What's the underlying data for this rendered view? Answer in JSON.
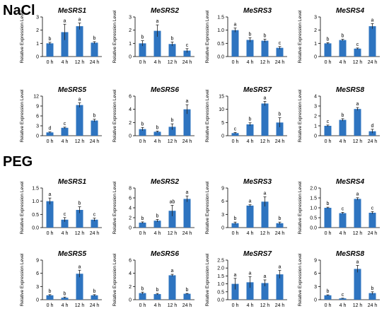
{
  "sections": [
    {
      "title": "NaCl"
    },
    {
      "title": "PEG"
    }
  ],
  "colors": {
    "bar": "#2e74c0",
    "axis": "#000000",
    "error": "#222222"
  },
  "chart_data": [
    {
      "section": "NaCl",
      "type": "bar",
      "title": "MeSRS1",
      "ylabel": "Relative Expression Level",
      "categories": [
        "0 h",
        "4 h",
        "12 h",
        "24 h"
      ],
      "values": [
        1.0,
        1.85,
        2.3,
        1.05
      ],
      "errors": [
        0.08,
        0.6,
        0.25,
        0.08
      ],
      "letters": [
        "b",
        "a",
        "a",
        "b"
      ],
      "ylim": [
        0,
        3
      ],
      "yticks": [
        0,
        1,
        2,
        3
      ]
    },
    {
      "section": "NaCl",
      "type": "bar",
      "title": "MeSRS2",
      "ylabel": "Relative Expression Level",
      "categories": [
        "0 h",
        "4 h",
        "12 h",
        "24 h"
      ],
      "values": [
        1.0,
        1.95,
        0.95,
        0.45
      ],
      "errors": [
        0.2,
        0.45,
        0.15,
        0.15
      ],
      "letters": [
        "b",
        "a",
        "b",
        "c"
      ],
      "ylim": [
        0,
        3
      ],
      "yticks": [
        0,
        1,
        2,
        3
      ]
    },
    {
      "section": "NaCl",
      "type": "bar",
      "title": "MeSRS3",
      "ylabel": "Relative Expression Level",
      "categories": [
        "0 h",
        "4 h",
        "12 h",
        "24 h"
      ],
      "values": [
        1.0,
        0.63,
        0.6,
        0.33
      ],
      "errors": [
        0.08,
        0.08,
        0.06,
        0.05
      ],
      "letters": [
        "a",
        "b",
        "b",
        "c"
      ],
      "ylim": [
        0,
        1.5
      ],
      "yticks": [
        0,
        0.5,
        1.0,
        1.5
      ]
    },
    {
      "section": "NaCl",
      "type": "bar",
      "title": "MeSRS4",
      "ylabel": "Relative Expression Level",
      "categories": [
        "0 h",
        "4 h",
        "12 h",
        "24 h"
      ],
      "values": [
        1.0,
        1.25,
        0.6,
        2.3
      ],
      "errors": [
        0.05,
        0.06,
        0.05,
        0.2
      ],
      "letters": [
        "b",
        "b",
        "c",
        "a"
      ],
      "ylim": [
        0,
        3
      ],
      "yticks": [
        0,
        1,
        2,
        3
      ]
    },
    {
      "section": "NaCl",
      "type": "bar",
      "title": "MeSRS5",
      "ylabel": "Relative Expression Level",
      "categories": [
        "0 h",
        "4 h",
        "12 h",
        "24 h"
      ],
      "values": [
        1.0,
        2.4,
        9.3,
        4.6
      ],
      "errors": [
        0.15,
        0.2,
        0.7,
        0.4
      ],
      "letters": [
        "d",
        "c",
        "a",
        "b"
      ],
      "ylim": [
        0,
        12
      ],
      "yticks": [
        0,
        3,
        6,
        9,
        12
      ]
    },
    {
      "section": "NaCl",
      "type": "bar",
      "title": "MeSRS6",
      "ylabel": "Relative Expression Level",
      "categories": [
        "0 h",
        "4 h",
        "12 h",
        "24 h"
      ],
      "values": [
        1.0,
        0.6,
        1.35,
        4.0
      ],
      "errors": [
        0.25,
        0.1,
        0.45,
        0.7
      ],
      "letters": [
        "b",
        "b",
        "b",
        "a"
      ],
      "ylim": [
        0,
        6
      ],
      "yticks": [
        0,
        2,
        4,
        6
      ]
    },
    {
      "section": "NaCl",
      "type": "bar",
      "title": "MeSRS7",
      "ylabel": "Relative Expression Level",
      "categories": [
        "0 h",
        "4 h",
        "12 h",
        "24 h"
      ],
      "values": [
        1.0,
        4.3,
        12.2,
        5.0
      ],
      "errors": [
        0.2,
        0.6,
        0.8,
        1.8
      ],
      "letters": [
        "c",
        "b",
        "a",
        "b"
      ],
      "ylim": [
        0,
        15
      ],
      "yticks": [
        0,
        5,
        10,
        15
      ]
    },
    {
      "section": "NaCl",
      "type": "bar",
      "title": "MeSRS8",
      "ylabel": "Relative Expression Level",
      "categories": [
        "0 h",
        "4 h",
        "12 h",
        "24 h"
      ],
      "values": [
        1.0,
        1.6,
        2.7,
        0.45
      ],
      "errors": [
        0.08,
        0.12,
        0.15,
        0.2
      ],
      "letters": [
        "c",
        "b",
        "a",
        "d"
      ],
      "ylim": [
        0,
        4
      ],
      "yticks": [
        0,
        1,
        2,
        3,
        4
      ]
    },
    {
      "section": "PEG",
      "type": "bar",
      "title": "MeSRS1",
      "ylabel": "Relative Expression Level",
      "categories": [
        "0 h",
        "4 h",
        "12 h",
        "24 h"
      ],
      "values": [
        1.0,
        0.3,
        0.67,
        0.3
      ],
      "errors": [
        0.12,
        0.08,
        0.12,
        0.06
      ],
      "letters": [
        "a",
        "c",
        "b",
        "c"
      ],
      "ylim": [
        0,
        1.5
      ],
      "yticks": [
        0,
        0.5,
        1.0,
        1.5
      ]
    },
    {
      "section": "PEG",
      "type": "bar",
      "title": "MeSRS2",
      "ylabel": "Relative Expression Level",
      "categories": [
        "0 h",
        "4 h",
        "12 h",
        "24 h"
      ],
      "values": [
        1.0,
        1.4,
        3.4,
        5.8
      ],
      "errors": [
        0.15,
        0.25,
        1.1,
        0.6
      ],
      "letters": [
        "b",
        "b",
        "ab",
        "a"
      ],
      "ylim": [
        0,
        8
      ],
      "yticks": [
        0,
        2,
        4,
        6,
        8
      ]
    },
    {
      "section": "PEG",
      "type": "bar",
      "title": "MeSRS3",
      "ylabel": "Relative Expression Level",
      "categories": [
        "0 h",
        "4 h",
        "12 h",
        "24 h"
      ],
      "values": [
        1.0,
        5.0,
        5.9,
        1.0
      ],
      "errors": [
        0.25,
        0.2,
        1.1,
        0.25
      ],
      "letters": [
        "b",
        "a",
        "a",
        "b"
      ],
      "ylim": [
        0,
        9
      ],
      "yticks": [
        0,
        3,
        6,
        9
      ]
    },
    {
      "section": "PEG",
      "type": "bar",
      "title": "MeSRS4",
      "ylabel": "Relative Expression Level",
      "categories": [
        "0 h",
        "4 h",
        "12 h",
        "24 h"
      ],
      "values": [
        1.0,
        0.73,
        1.45,
        0.75
      ],
      "errors": [
        0.03,
        0.04,
        0.06,
        0.06
      ],
      "letters": [
        "b",
        "c",
        "a",
        "c"
      ],
      "ylim": [
        0,
        2.0
      ],
      "yticks": [
        0,
        0.5,
        1.0,
        1.5,
        2.0
      ]
    },
    {
      "section": "PEG",
      "type": "bar",
      "title": "MeSRS5",
      "ylabel": "Relative Expression Level",
      "categories": [
        "0 h",
        "4 h",
        "12 h",
        "24 h"
      ],
      "values": [
        1.0,
        0.45,
        5.9,
        1.0
      ],
      "errors": [
        0.15,
        0.15,
        0.8,
        0.15
      ],
      "letters": [
        "b",
        "b",
        "a",
        "b"
      ],
      "ylim": [
        0,
        9
      ],
      "yticks": [
        0,
        3,
        6,
        9
      ]
    },
    {
      "section": "PEG",
      "type": "bar",
      "title": "MeSRS6",
      "ylabel": "Relative Expression Level",
      "categories": [
        "0 h",
        "4 h",
        "12 h",
        "24 h"
      ],
      "values": [
        1.0,
        0.85,
        3.7,
        0.9
      ],
      "errors": [
        0.15,
        0.1,
        0.15,
        0.05
      ],
      "letters": [
        "b",
        "b",
        "a",
        "b"
      ],
      "ylim": [
        0,
        6
      ],
      "yticks": [
        0,
        2,
        4,
        6
      ]
    },
    {
      "section": "PEG",
      "type": "bar",
      "title": "MeSRS7",
      "ylabel": "Relative Expression Level",
      "categories": [
        "0 h",
        "4 h",
        "12 h",
        "24 h"
      ],
      "values": [
        1.0,
        1.1,
        1.05,
        1.6
      ],
      "errors": [
        0.35,
        0.35,
        0.2,
        0.25
      ],
      "letters": [
        "a",
        "a",
        "a",
        "a"
      ],
      "ylim": [
        0,
        2.5
      ],
      "yticks": [
        0,
        0.5,
        1.0,
        1.5,
        2.0,
        2.5
      ]
    },
    {
      "section": "PEG",
      "type": "bar",
      "title": "MeSRS8",
      "ylabel": "Relative Expression Level",
      "categories": [
        "0 h",
        "4 h",
        "12 h",
        "24 h"
      ],
      "values": [
        1.0,
        0.3,
        7.0,
        1.5
      ],
      "errors": [
        0.1,
        0.05,
        0.8,
        0.3
      ],
      "letters": [
        "b",
        "c",
        "a",
        "b"
      ],
      "ylim": [
        0,
        9
      ],
      "yticks": [
        0,
        3,
        6,
        9
      ]
    }
  ]
}
